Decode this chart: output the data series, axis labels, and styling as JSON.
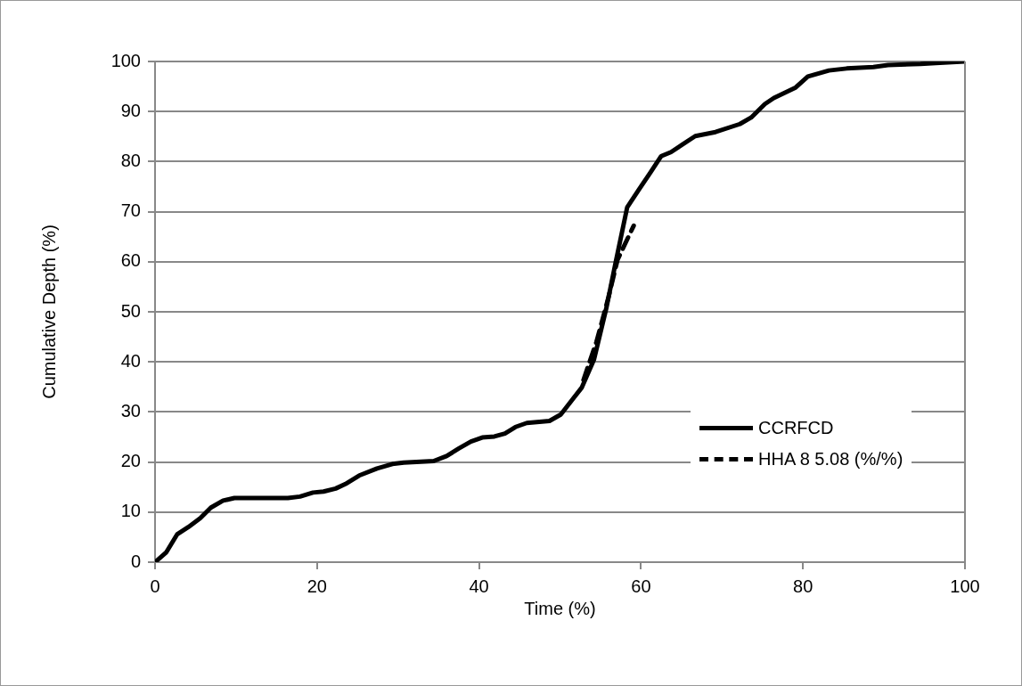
{
  "chart_data": {
    "type": "line",
    "xlabel": "Time (%)",
    "ylabel": "Cumulative Depth (%)",
    "xlim": [
      0,
      100
    ],
    "xticks": [
      0,
      20,
      40,
      60,
      80,
      100
    ],
    "ylim": [
      0,
      100
    ],
    "yticks": [
      0,
      10,
      20,
      30,
      40,
      50,
      60,
      70,
      80,
      90,
      100
    ],
    "grid": "y",
    "legend": "bottom right",
    "marker": "none",
    "series": [
      {
        "name": "CCRFCD",
        "color": "#000000",
        "line_style": "solid",
        "x": [
          0,
          1.4,
          2.75,
          4.1,
          5.6,
          6.9,
          8.4,
          9.8,
          16.4,
          17.9,
          19.5,
          20.8,
          22.3,
          23.5,
          25.2,
          27.4,
          29.3,
          30.7,
          34.4,
          36.0,
          37.5,
          39.0,
          40.4,
          41.9,
          43.2,
          44.5,
          45.9,
          48.7,
          50.1,
          51.4,
          52.7,
          54.2,
          55.7,
          56.9,
          58.3,
          59.7,
          61.2,
          62.5,
          63.7,
          66.7,
          69.2,
          72.2,
          73.6,
          75.3,
          76.4,
          79.1,
          80.6,
          83.2,
          85.4,
          88.7,
          90.5,
          94.5,
          96.4,
          100
        ],
        "values": [
          0,
          2,
          5.6,
          7,
          8.8,
          10.9,
          12.3,
          12.8,
          12.8,
          13.1,
          13.9,
          14.1,
          14.7,
          15.6,
          17.3,
          18.7,
          19.6,
          19.9,
          20.2,
          21.2,
          22.7,
          24.1,
          24.9,
          25.1,
          25.7,
          27.0,
          27.8,
          28.2,
          29.5,
          32.2,
          34.9,
          40.5,
          50.6,
          60.1,
          70.9,
          74.3,
          77.9,
          81.1,
          81.9,
          85.1,
          85.9,
          87.5,
          88.8,
          91.5,
          92.7,
          94.8,
          97.0,
          98.2,
          98.6,
          98.9,
          99.3,
          99.5,
          99.7,
          100
        ]
      },
      {
        "name": "HHA 8 5.08 (%/%)",
        "color": "#000000",
        "line_style": "dashed",
        "x": [
          52.9,
          54.5,
          56.0,
          57.1,
          59.1
        ],
        "values": [
          36.4,
          44,
          53,
          60.4,
          67.2
        ]
      }
    ]
  }
}
